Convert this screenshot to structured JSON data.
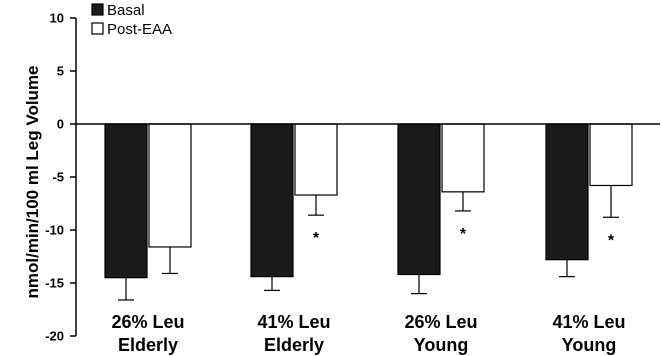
{
  "chart_data": {
    "type": "bar",
    "title": "",
    "xlabel": "",
    "ylabel": "nmol/min/100 ml Leg Volume",
    "ylim": [
      -20,
      10
    ],
    "yticks": [
      10,
      5,
      0,
      -5,
      -10,
      -15,
      -20
    ],
    "grid": false,
    "legend_position": "top-left",
    "categories": [
      {
        "line1": "26% Leu",
        "line2": "Elderly"
      },
      {
        "line1": "41% Leu",
        "line2": "Elderly"
      },
      {
        "line1": "26% Leu",
        "line2": "Young"
      },
      {
        "line1": "41% Leu",
        "line2": "Young"
      }
    ],
    "series": [
      {
        "name": "Basal",
        "color": "#1a1a1a",
        "values": [
          -14.5,
          -14.4,
          -14.2,
          -12.8
        ],
        "errors": [
          2.1,
          1.3,
          1.8,
          1.6
        ]
      },
      {
        "name": "Post-EAA",
        "color": "#ffffff",
        "values": [
          -11.6,
          -6.7,
          -6.4,
          -5.8
        ],
        "errors": [
          2.5,
          1.9,
          1.8,
          3.0
        ]
      }
    ],
    "annotations": [
      {
        "category": 1,
        "series": 1,
        "text": "*"
      },
      {
        "category": 2,
        "series": 1,
        "text": "*"
      },
      {
        "category": 3,
        "series": 1,
        "text": "*"
      }
    ]
  }
}
